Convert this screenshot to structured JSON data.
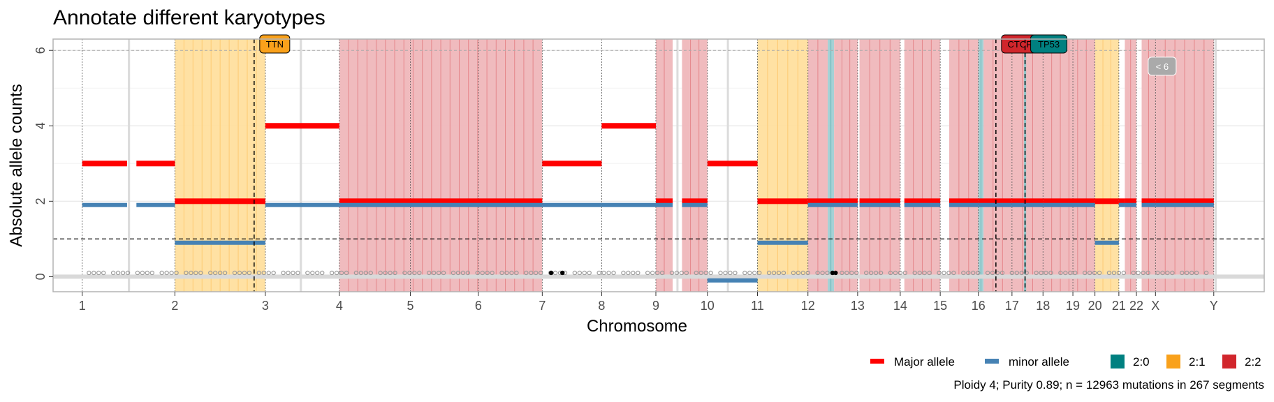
{
  "chart_data": {
    "type": "segments",
    "title": "Annotate different karyotypes",
    "xlabel": "Chromosome",
    "ylabel": "Absolute allele counts",
    "ylim": [
      -0.4,
      6.3
    ],
    "y_ticks": [
      0,
      2,
      4,
      6
    ],
    "grid": true,
    "reference_lines": {
      "dashed_y": 1,
      "dotted_y": 6
    },
    "chromosomes": [
      {
        "label": "1",
        "start": 0,
        "end": 248
      },
      {
        "label": "2",
        "start": 248,
        "end": 490
      },
      {
        "label": "3",
        "start": 490,
        "end": 688
      },
      {
        "label": "4",
        "start": 688,
        "end": 878
      },
      {
        "label": "5",
        "start": 878,
        "end": 1060
      },
      {
        "label": "6",
        "start": 1060,
        "end": 1231
      },
      {
        "label": "7",
        "start": 1231,
        "end": 1390
      },
      {
        "label": "8",
        "start": 1390,
        "end": 1535
      },
      {
        "label": "9",
        "start": 1535,
        "end": 1673
      },
      {
        "label": "10",
        "start": 1673,
        "end": 1807
      },
      {
        "label": "11",
        "start": 1807,
        "end": 1942
      },
      {
        "label": "12",
        "start": 1942,
        "end": 2075
      },
      {
        "label": "13",
        "start": 2075,
        "end": 2189
      },
      {
        "label": "14",
        "start": 2189,
        "end": 2296
      },
      {
        "label": "15",
        "start": 2296,
        "end": 2398
      },
      {
        "label": "16",
        "start": 2398,
        "end": 2488
      },
      {
        "label": "17",
        "start": 2488,
        "end": 2571
      },
      {
        "label": "18",
        "start": 2571,
        "end": 2651
      },
      {
        "label": "19",
        "start": 2651,
        "end": 2710
      },
      {
        "label": "20",
        "start": 2710,
        "end": 2774
      },
      {
        "label": "21",
        "start": 2774,
        "end": 2821
      },
      {
        "label": "22",
        "start": 2821,
        "end": 2872
      },
      {
        "label": "X",
        "start": 2872,
        "end": 3028
      },
      {
        "label": "Y",
        "start": 3028,
        "end": 3085
      }
    ],
    "shaded_regions": [
      {
        "karyotype": "2:1",
        "start": 248,
        "end": 490
      },
      {
        "karyotype": "2:2",
        "start": 688,
        "end": 1231
      },
      {
        "karyotype": "2:2",
        "start": 1535,
        "end": 1580
      },
      {
        "karyotype": "2:2",
        "start": 1605,
        "end": 1673
      },
      {
        "karyotype": "2:1",
        "start": 1807,
        "end": 1942
      },
      {
        "karyotype": "2:2",
        "start": 1942,
        "end": 1995
      },
      {
        "karyotype": "2:0",
        "start": 1995,
        "end": 2012
      },
      {
        "karyotype": "2:2",
        "start": 2012,
        "end": 2075
      },
      {
        "karyotype": "2:2",
        "start": 2080,
        "end": 2189
      },
      {
        "karyotype": "2:2",
        "start": 2200,
        "end": 2296
      },
      {
        "karyotype": "2:2",
        "start": 2320,
        "end": 2398
      },
      {
        "karyotype": "2:0",
        "start": 2398,
        "end": 2412
      },
      {
        "karyotype": "2:2",
        "start": 2412,
        "end": 2488
      },
      {
        "karyotype": "2:2",
        "start": 2488,
        "end": 2571
      },
      {
        "karyotype": "2:0",
        "start": 2520,
        "end": 2526
      },
      {
        "karyotype": "2:2",
        "start": 2571,
        "end": 2710
      },
      {
        "karyotype": "2:1",
        "start": 2710,
        "end": 2774
      },
      {
        "karyotype": "2:2",
        "start": 2790,
        "end": 2821
      },
      {
        "karyotype": "2:2",
        "start": 2835,
        "end": 2872
      },
      {
        "karyotype": "2:2",
        "start": 2872,
        "end": 3028
      }
    ],
    "segments": [
      {
        "start": 0,
        "end": 120,
        "major": 3,
        "minor": 1.9
      },
      {
        "start": 145,
        "end": 248,
        "major": 3,
        "minor": 1.9
      },
      {
        "start": 248,
        "end": 490,
        "major": 2,
        "minor": 0.9
      },
      {
        "start": 490,
        "end": 688,
        "major": 4,
        "minor": 1.9
      },
      {
        "start": 688,
        "end": 1231,
        "major": 2,
        "minor": 1.9
      },
      {
        "start": 1231,
        "end": 1390,
        "major": 3,
        "minor": 1.9
      },
      {
        "start": 1390,
        "end": 1535,
        "major": 4,
        "minor": 1.9
      },
      {
        "start": 1535,
        "end": 1580,
        "major": 2,
        "minor": 1.9
      },
      {
        "start": 1605,
        "end": 1673,
        "major": 2,
        "minor": 1.9
      },
      {
        "start": 1673,
        "end": 1807,
        "major": 3,
        "minor": -0.1
      },
      {
        "start": 1807,
        "end": 1942,
        "major": 2,
        "minor": 0.9
      },
      {
        "start": 1942,
        "end": 2075,
        "major": 2,
        "minor": 1.9
      },
      {
        "start": 2080,
        "end": 2189,
        "major": 2,
        "minor": 1.9
      },
      {
        "start": 2200,
        "end": 2296,
        "major": 2,
        "minor": 1.9
      },
      {
        "start": 2320,
        "end": 2398,
        "major": 2,
        "minor": 1.9
      },
      {
        "start": 2398,
        "end": 2488,
        "major": 2,
        "minor": 1.9
      },
      {
        "start": 2488,
        "end": 2571,
        "major": 2,
        "minor": 1.9
      },
      {
        "start": 2571,
        "end": 2710,
        "major": 2,
        "minor": 1.9
      },
      {
        "start": 2710,
        "end": 2774,
        "major": 2,
        "minor": 0.9
      },
      {
        "start": 2774,
        "end": 2790,
        "major": 2,
        "minor": 1.9
      },
      {
        "start": 2790,
        "end": 2821,
        "major": 2,
        "minor": 1.9
      },
      {
        "start": 2835,
        "end": 2872,
        "major": 2,
        "minor": 1.9
      },
      {
        "start": 2872,
        "end": 3028,
        "major": 2,
        "minor": 1.9
      }
    ],
    "drivers": [
      {
        "label": "TTN",
        "position": 460,
        "karyotype": "2:1"
      },
      {
        "label": "CTCF",
        "position": 2445,
        "karyotype": "2:2"
      },
      {
        "label": "TP53",
        "position": 2523,
        "karyotype": "2:0"
      }
    ],
    "other_annotation": {
      "label": "< 6",
      "position": 2860,
      "y": 5.6
    },
    "legend": {
      "alleles": [
        {
          "label": "Major allele",
          "color": "#ff0000"
        },
        {
          "label": "minor allele",
          "color": "#4682b4"
        }
      ],
      "karyotypes": [
        {
          "label": "2:0",
          "color": "#008080"
        },
        {
          "label": "2:1",
          "color": "#f9a11b"
        },
        {
          "label": "2:2",
          "color": "#d1262c"
        }
      ],
      "placement": "bottom-right"
    },
    "caption": "Ploidy 4; Purity  0.89; n = 12963 mutations in 267 segments"
  }
}
